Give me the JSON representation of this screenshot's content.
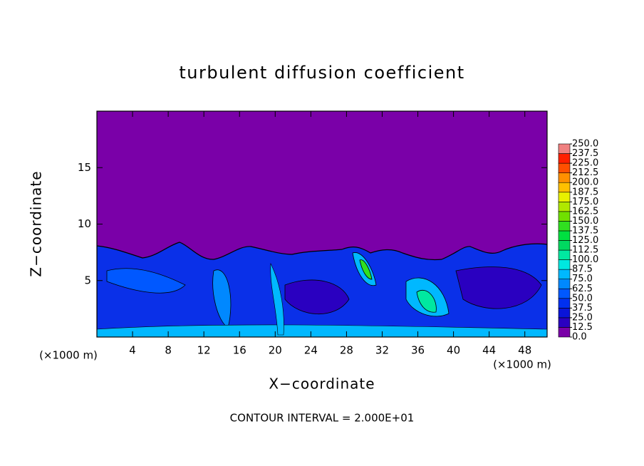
{
  "chart_data": {
    "type": "contour",
    "title": "turbulent diffusion coefficient",
    "xlabel": "X−coordinate",
    "ylabel": "Z−coordinate",
    "x_unit": "(×1000 m)",
    "note": "CONTOUR INTERVAL = 2.000E+01",
    "xlim": [
      0,
      50.5
    ],
    "ylim": [
      0,
      20
    ],
    "xticks": [
      4,
      8,
      12,
      16,
      20,
      24,
      28,
      32,
      36,
      40,
      44,
      48
    ],
    "yticks": [
      5,
      10,
      15
    ],
    "colorbar_ticks": [
      {
        "value": 0,
        "label": "0.0"
      },
      {
        "value": 12.5,
        "label": "12.5"
      },
      {
        "value": 25,
        "label": "25.0"
      },
      {
        "value": 37.5,
        "label": "37.5"
      },
      {
        "value": 50,
        "label": "50.0"
      },
      {
        "value": 62.5,
        "label": "62.5"
      },
      {
        "value": 75,
        "label": "75.0"
      },
      {
        "value": 87.5,
        "label": "87.5"
      },
      {
        "value": 100,
        "label": "100.0"
      },
      {
        "value": 112.5,
        "label": "112.5"
      },
      {
        "value": 125,
        "label": "125.0"
      },
      {
        "value": 137.5,
        "label": "137.5"
      },
      {
        "value": 150,
        "label": "150.0"
      },
      {
        "value": 162.5,
        "label": "162.5"
      },
      {
        "value": 175,
        "label": "175.0"
      },
      {
        "value": 187.5,
        "label": "187.5"
      },
      {
        "value": 200,
        "label": "200.0"
      },
      {
        "value": 212.5,
        "label": "212.5"
      },
      {
        "value": 225,
        "label": "225.0"
      },
      {
        "value": 237.5,
        "label": "237.5"
      },
      {
        "value": 250,
        "label": "250.0"
      }
    ],
    "colorbar_colors": [
      "#7a00a8",
      "#2a00c0",
      "#0a14d8",
      "#0030f0",
      "#0058ff",
      "#0088ff",
      "#00b8ff",
      "#00e8e0",
      "#00e8a0",
      "#00d860",
      "#00e040",
      "#30e020",
      "#70e000",
      "#b0e800",
      "#e8f000",
      "#ffc000",
      "#ff9000",
      "#ff5000",
      "#ff2000",
      "#f08080"
    ]
  }
}
